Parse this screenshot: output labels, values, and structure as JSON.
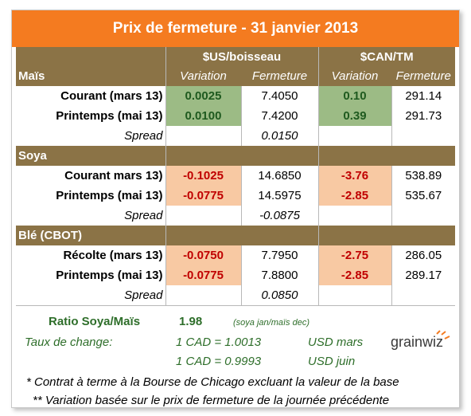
{
  "title": "Prix de fermeture - 31 janvier 2013",
  "headers": {
    "usd_unit": "$US/boisseau",
    "cad_unit": "$CAN/TM",
    "variation": "Variation",
    "fermeture": "Fermeture"
  },
  "sections": [
    {
      "name": "Maïs",
      "rows": [
        {
          "label": "Courant (mars 13)",
          "usd_var": "0.0025",
          "usd_close": "7.4050",
          "cad_var": "0.10",
          "cad_close": "291.14"
        },
        {
          "label": "Printemps (mai 13)",
          "usd_var": "0.0100",
          "usd_close": "7.4200",
          "cad_var": "0.39",
          "cad_close": "291.73"
        }
      ],
      "spread_label": "Spread",
      "spread_value": "0.0150"
    },
    {
      "name": "Soya",
      "rows": [
        {
          "label": "Courant mars 13)",
          "usd_var": "-0.1025",
          "usd_close": "14.6850",
          "cad_var": "-3.76",
          "cad_close": "538.89"
        },
        {
          "label": "Printemps (mai 13)",
          "usd_var": "-0.0775",
          "usd_close": "14.5975",
          "cad_var": "-2.85",
          "cad_close": "535.67"
        }
      ],
      "spread_label": "Spread",
      "spread_value": "-0.0875"
    },
    {
      "name": "Blé (CBOT)",
      "rows": [
        {
          "label": "Récolte (mars 13)",
          "usd_var": "-0.0750",
          "usd_close": "7.7950",
          "cad_var": "-2.75",
          "cad_close": "286.05"
        },
        {
          "label": "Printemps (mai 13)",
          "usd_var": "-0.0775",
          "usd_close": "7.8800",
          "cad_var": "-2.85",
          "cad_close": "289.17"
        }
      ],
      "spread_label": "Spread",
      "spread_value": "0.0850"
    }
  ],
  "ratio": {
    "label": "Ratio Soya/Maïs",
    "value": "1.98",
    "note": "(soya jan/maïs dec)"
  },
  "exchange": {
    "label": "Taux de change:",
    "rows": [
      {
        "text": "1 CAD =  1.0013",
        "unit": "USD mars"
      },
      {
        "text": "1 CAD =  0.9993",
        "unit": "USD juin"
      }
    ]
  },
  "logo": {
    "text": "grainwiz"
  },
  "footnotes": [
    "* Contrat à terme à la Bourse de Chicago excluant la valeur de la base",
    "** Variation basée sur le prix de fermeture de la journée précédente"
  ],
  "colors": {
    "title_bg": "#f47b20",
    "section_bg": "#8b7346",
    "positive_bg": "#9cbb85",
    "negative_bg": "#f8c9a3",
    "negative_text": "#c00000",
    "accent_green": "#2e6e2a"
  }
}
